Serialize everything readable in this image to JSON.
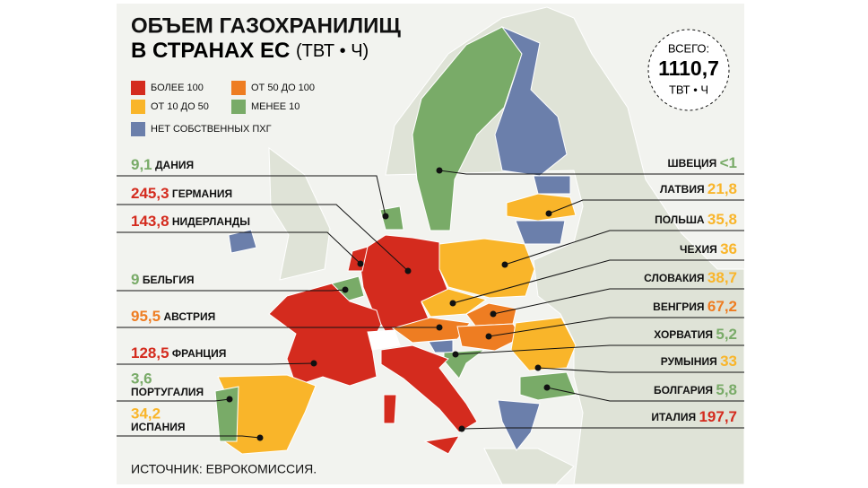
{
  "header": {
    "title_line1": "ОБЪЕМ ГАЗОХРАНИЛИЩ",
    "title_line2": "В СТРАНАХ ЕС",
    "title_unit": "(ТВТ • Ч)"
  },
  "total": {
    "label": "ВСЕГО:",
    "value": "1110,7",
    "unit": "ТВТ • Ч"
  },
  "legend": [
    {
      "label": "БОЛЕЕ 100",
      "color": "#d42b1e"
    },
    {
      "label": "ОТ 50 ДО 100",
      "color": "#ee7d22"
    },
    {
      "label": "ОТ 10 ДО 50",
      "color": "#f9b52a"
    },
    {
      "label": "МЕНЕЕ 10",
      "color": "#79ab68"
    },
    {
      "label": "НЕТ СОБСТВЕННЫХ ПХГ",
      "color": "#6b7fab"
    }
  ],
  "countries_left": [
    {
      "value": "9,1",
      "name": "ДАНИЯ",
      "color": "#79ab68"
    },
    {
      "value": "245,3",
      "name": "ГЕРМАНИЯ",
      "color": "#d42b1e"
    },
    {
      "value": "143,8",
      "name": "НИДЕРЛАНДЫ",
      "color": "#d42b1e"
    },
    {
      "value": "9",
      "name": "БЕЛЬГИЯ",
      "color": "#79ab68"
    },
    {
      "value": "95,5",
      "name": "АВСТРИЯ",
      "color": "#ee7d22"
    },
    {
      "value": "128,5",
      "name": "ФРАНЦИЯ",
      "color": "#d42b1e"
    },
    {
      "value": "3,6",
      "name": "ПОРТУГАЛИЯ",
      "color": "#79ab68"
    },
    {
      "value": "34,2",
      "name": "ИСПАНИЯ",
      "color": "#f9b52a"
    }
  ],
  "countries_right": [
    {
      "name": "ШВЕЦИЯ",
      "value": "<1",
      "color": "#79ab68"
    },
    {
      "name": "ЛАТВИЯ",
      "value": "21,8",
      "color": "#f9b52a"
    },
    {
      "name": "ПОЛЬША",
      "value": "35,8",
      "color": "#f9b52a"
    },
    {
      "name": "ЧЕХИЯ",
      "value": "36",
      "color": "#f9b52a"
    },
    {
      "name": "СЛОВАКИЯ",
      "value": "38,7",
      "color": "#f9b52a"
    },
    {
      "name": "ВЕНГРИЯ",
      "value": "67,2",
      "color": "#ee7d22"
    },
    {
      "name": "ХОРВАТИЯ",
      "value": "5,2",
      "color": "#79ab68"
    },
    {
      "name": "РУМЫНИЯ",
      "value": "33",
      "color": "#f9b52a"
    },
    {
      "name": "БОЛГАРИЯ",
      "value": "5,8",
      "color": "#79ab68"
    },
    {
      "name": "ИТАЛИЯ",
      "value": "197,7",
      "color": "#d42b1e"
    }
  ],
  "source": "ИСТОЧНИК: ЕВРОКОМИССИЯ."
}
